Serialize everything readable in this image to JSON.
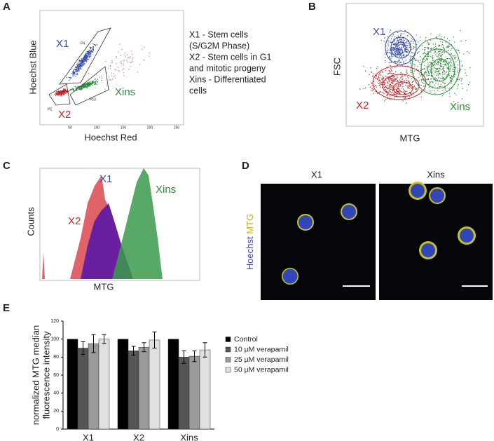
{
  "panels": {
    "a": {
      "letter": "A",
      "y_label": "Hoechst Blue",
      "x_label": "Hoechst Red",
      "gates": [
        "X1",
        "X2",
        "Xins"
      ],
      "gate_ids": [
        "P4",
        "P5",
        "P10"
      ],
      "ticks": [
        "50",
        "100",
        "150",
        "200",
        "250"
      ],
      "legend": [
        "X1 - Stem cells",
        "(S/G2M Phase)",
        "X2 - Stem cells in G1",
        "and mitotic progeny",
        "Xins - Differentiated",
        "cells"
      ]
    },
    "b": {
      "letter": "B",
      "y_label": "FSC",
      "x_label": "MTG",
      "gates": [
        "X1",
        "X2",
        "Xins"
      ]
    },
    "c": {
      "letter": "C",
      "y_label": "Counts",
      "x_label": "MTG",
      "gates": [
        "X1",
        "X2",
        "Xins"
      ]
    },
    "d": {
      "letter": "D",
      "titles": [
        "X1",
        "Xins"
      ],
      "stain_labels": [
        "Hoechst",
        "MTG"
      ]
    },
    "e": {
      "letter": "E"
    }
  },
  "chart_data": {
    "type": "bar",
    "y_label": [
      "normalized MTG median",
      "fluorescence intensity"
    ],
    "categories": [
      "X1",
      "X2",
      "Xins"
    ],
    "series": [
      {
        "name": "Control",
        "color": "#000000",
        "values": [
          100,
          100,
          100
        ]
      },
      {
        "name": "10 µM verapamil",
        "color": "#555555",
        "values": [
          90,
          87,
          80
        ],
        "errors": [
          7,
          5,
          7
        ]
      },
      {
        "name": "25 µM verapamil",
        "color": "#9a9a9a",
        "values": [
          95,
          91,
          81
        ],
        "errors": [
          10,
          5,
          6
        ]
      },
      {
        "name": "50 µM verapamil",
        "color": "#e0e0e0",
        "values": [
          100,
          99,
          88
        ],
        "errors": [
          5,
          9,
          8
        ]
      }
    ],
    "ylim": [
      0,
      120
    ],
    "yticks": [
      0,
      20,
      40,
      60,
      80,
      100,
      120
    ],
    "legend": "right"
  }
}
